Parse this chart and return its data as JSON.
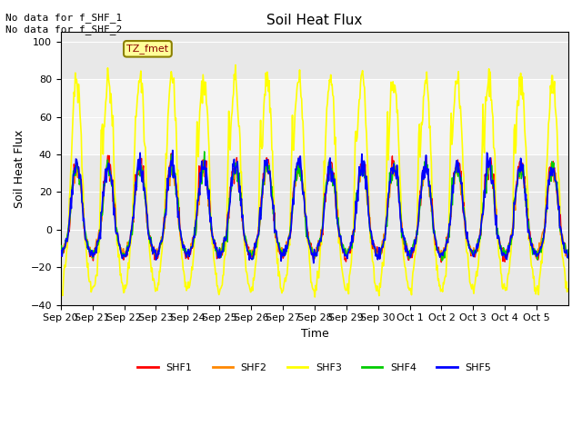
{
  "title": "Soil Heat Flux",
  "xlabel": "Time",
  "ylabel": "Soil Heat Flux",
  "ylim": [
    -40,
    105
  ],
  "yticks": [
    -40,
    -20,
    0,
    20,
    40,
    60,
    80,
    100
  ],
  "background_color": "#ffffff",
  "plot_bg_color": "#e8e8e8",
  "annotation_top_left": "No data for f_SHF_1\nNo data for f_SHF_2",
  "legend_box_label": "TZ_fmet",
  "legend_box_color": "#ffff99",
  "legend_box_border": "#8B8000",
  "shaded_region": [
    40,
    80
  ],
  "colors": {
    "SHF1": "#ff0000",
    "SHF2": "#ff8800",
    "SHF3": "#ffff00",
    "SHF4": "#00cc00",
    "SHF5": "#0000ff"
  },
  "x_tick_labels": [
    "Sep 20",
    "Sep 21",
    "Sep 22",
    "Sep 23",
    "Sep 24",
    "Sep 25",
    "Sep 26",
    "Sep 27",
    "Sep 28",
    "Sep 29",
    "Sep 30",
    "Oct 1",
    "Oct 2",
    "Oct 3",
    "Oct 4",
    "Oct 5"
  ],
  "num_days": 16,
  "start_day": 0
}
